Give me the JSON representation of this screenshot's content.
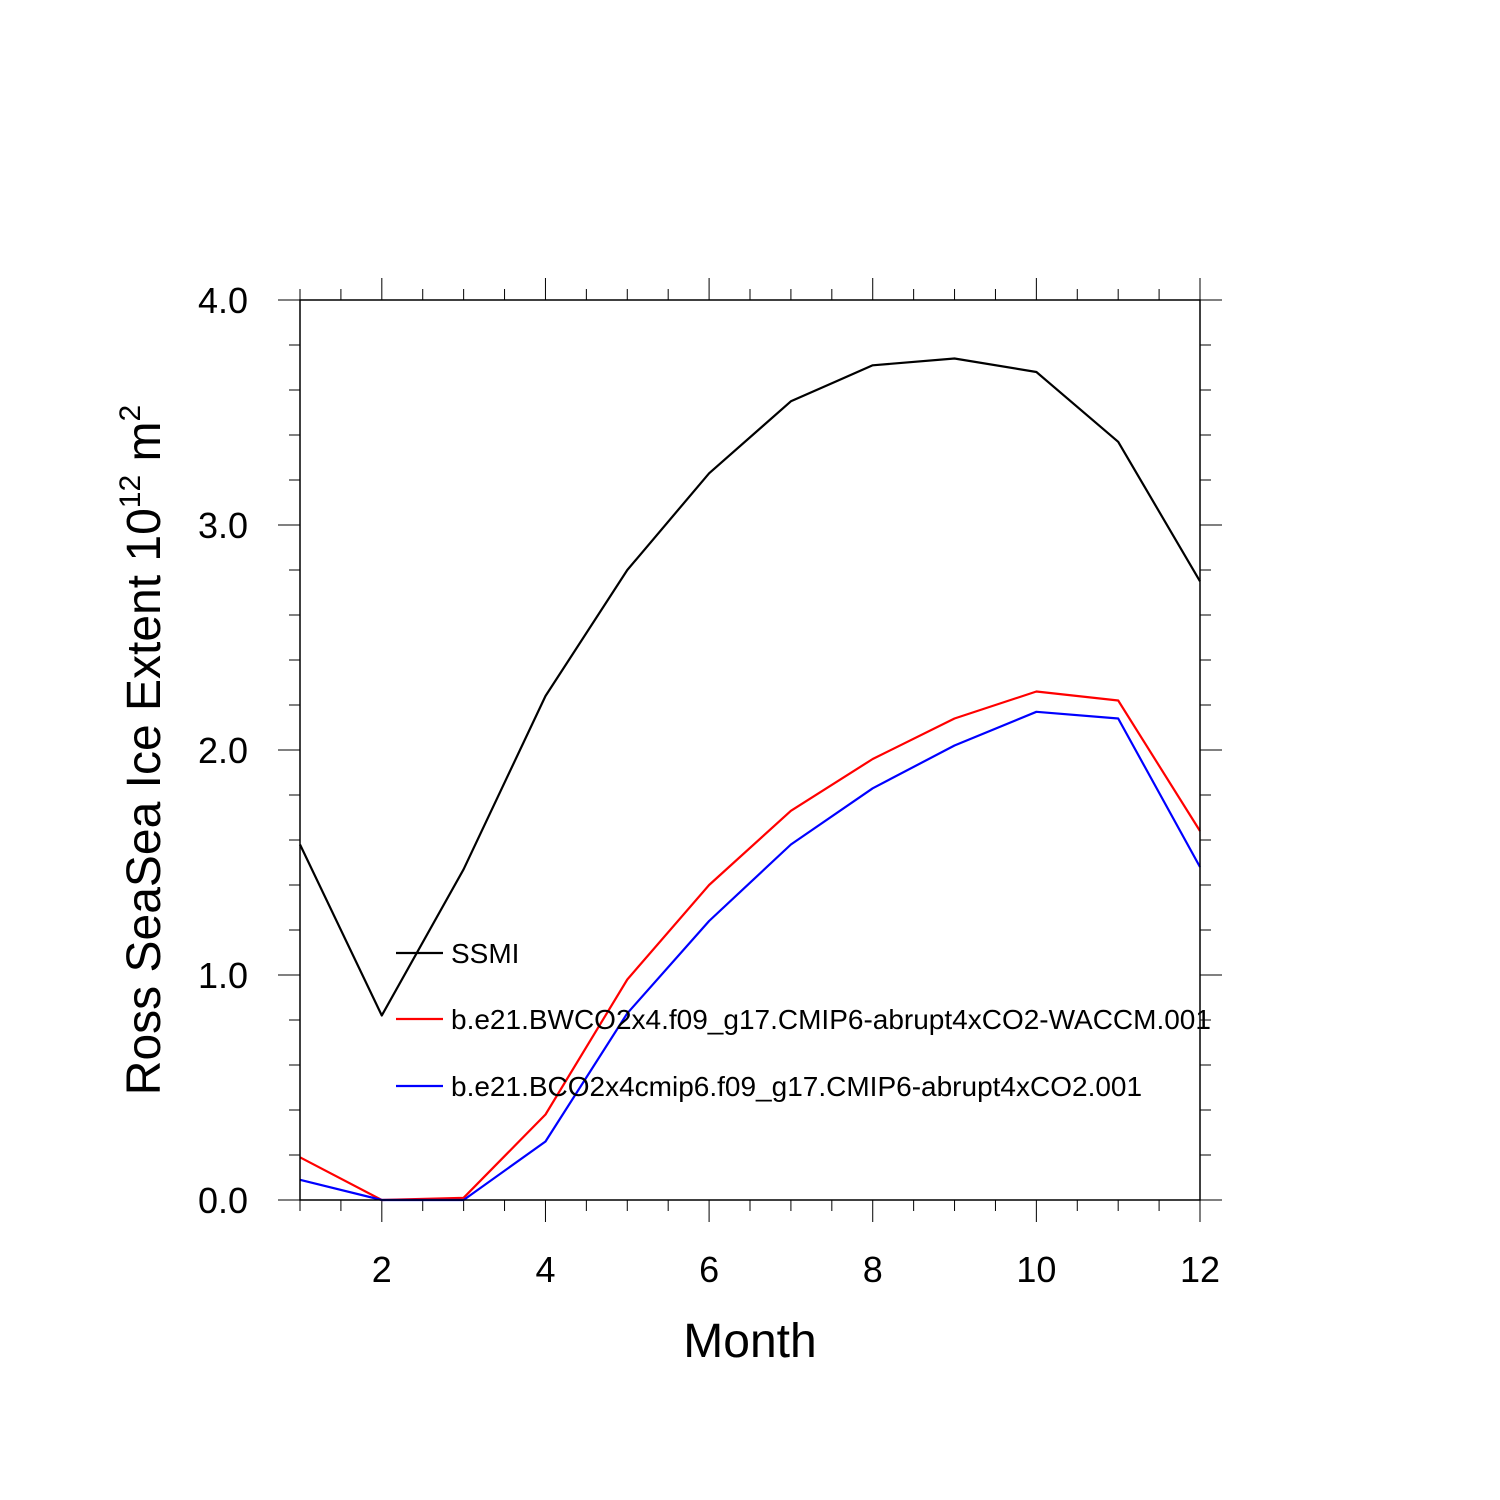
{
  "chart_data": {
    "type": "line",
    "title": "",
    "xlabel": "Month",
    "ylabel": {
      "prefix": "Ross SeaSea Ice Extent 10",
      "exponent": "12",
      "unit": " m",
      "unit_exponent": "2"
    },
    "xlim": [
      1,
      12
    ],
    "ylim": [
      0,
      4
    ],
    "x_ticks": [
      2,
      4,
      6,
      8,
      10,
      12
    ],
    "x_tick_labels": [
      "2",
      "4",
      "6",
      "8",
      "10",
      "12"
    ],
    "y_ticks": [
      0,
      1,
      2,
      3,
      4
    ],
    "y_tick_labels": [
      "0.0",
      "1.0",
      "2.0",
      "3.0",
      "4.0"
    ],
    "grid": false,
    "legend_position": "lower-left inside",
    "x": [
      1,
      2,
      3,
      4,
      5,
      6,
      7,
      8,
      9,
      10,
      11,
      12
    ],
    "series": [
      {
        "name": "SSMI",
        "color": "#000000",
        "values": [
          1.58,
          0.82,
          1.47,
          2.24,
          2.8,
          3.23,
          3.55,
          3.71,
          3.74,
          3.68,
          3.37,
          2.75
        ]
      },
      {
        "name": "b.e21.BWCO2x4.f09_g17.CMIP6-abrupt4xCO2-WACCM.001",
        "color": "#ff0000",
        "values": [
          0.19,
          0.0,
          0.01,
          0.38,
          0.98,
          1.4,
          1.73,
          1.96,
          2.14,
          2.26,
          2.22,
          1.64
        ]
      },
      {
        "name": "b.e21.BCO2x4cmip6.f09_g17.CMIP6-abrupt4xCO2.001",
        "color": "#0000ff",
        "values": [
          0.09,
          0.0,
          0.0,
          0.26,
          0.83,
          1.24,
          1.58,
          1.83,
          2.02,
          2.17,
          2.14,
          1.48
        ]
      }
    ]
  }
}
